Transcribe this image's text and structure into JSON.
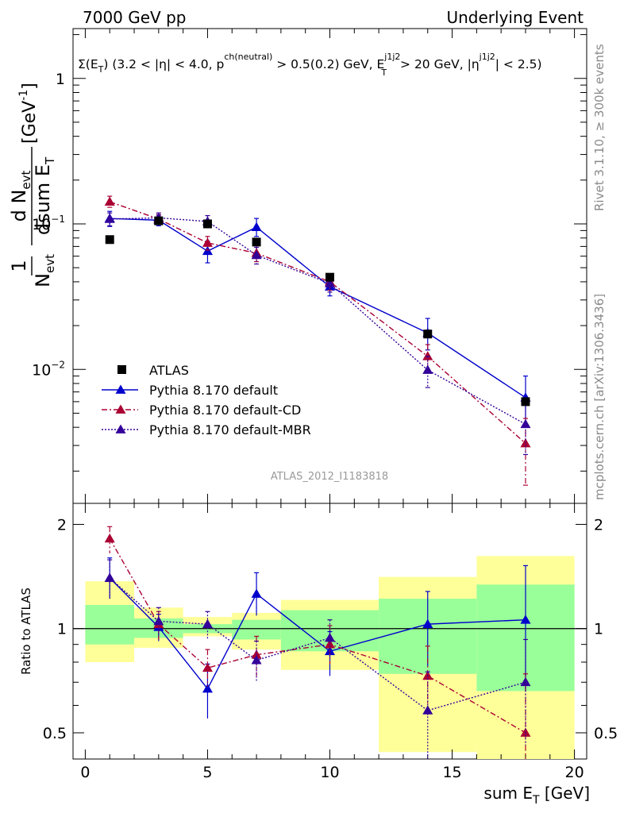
{
  "header": {
    "left": "7000 GeV pp",
    "right": "Underlying Event"
  },
  "side_labels": {
    "rivet": "Rivet 3.1.10, ≥ 300k events",
    "mcplots": "mcplots.cern.ch [arXiv:1306.3436]"
  },
  "watermark": "ATLAS_2012_I1183818",
  "chart_data": {
    "type": "scatter",
    "title": "Σ(E_T) (3.2 < |η| < 4.0, p^ch(neutral) > 0.5(0.2) GeV, E_T^j1j2 > 20 GeV, |η^j1j2| < 2.5)",
    "title_parts": {
      "sigma": "Σ(E",
      "t_sub": "T",
      "a": ") (3.2 < |η| < 4.0, p",
      "ch_sup": "ch(neutral)",
      "b": " > 0.5(0.2) GeV, E",
      "j_sup": "j1j2",
      "t_sub2": "T",
      "c": " > 20 GeV, |η",
      "j_sup2": "j1j2",
      "d": "| < 2.5)"
    },
    "xlabel": "sum E_T [GeV]",
    "xlabel_parts": {
      "main": "sum E",
      "sub": "T",
      "unit": " [GeV]"
    },
    "ylabel": "1/N_evt dN_evt/dsum E_T [GeV^-1]",
    "ylabel_parts": {
      "one": "1",
      "nevt": "N",
      "evt": "evt",
      "dn": "d N",
      "dsum": "dsum E",
      "t": "T",
      "unit": " [GeV",
      "exp": "-1",
      "close": "]"
    },
    "ratio_ylabel": "Ratio to ATLAS",
    "xlim": [
      -0.5,
      20.5
    ],
    "ylim": [
      0.0012,
      2.2
    ],
    "yscale": "log",
    "ratio_ylim": [
      0.42,
      2.3
    ],
    "x_ticks": [
      0,
      5,
      10,
      15,
      20
    ],
    "x_tick_labels": [
      "0",
      "5",
      "10",
      "15",
      "20"
    ],
    "y_tick_labels": [
      {
        "v": 1,
        "base": "1",
        "exp": ""
      },
      {
        "v": 0.1,
        "base": "10",
        "exp": "−1"
      },
      {
        "v": 0.01,
        "base": "10",
        "exp": "−2"
      }
    ],
    "ratio_tick_labels": [
      {
        "v": 0.5,
        "text": "0.5"
      },
      {
        "v": 1,
        "text": "1"
      },
      {
        "v": 2,
        "text": "2"
      }
    ],
    "bins": [
      [
        0,
        2
      ],
      [
        2,
        4
      ],
      [
        4,
        6
      ],
      [
        6,
        8
      ],
      [
        8,
        12
      ],
      [
        12,
        16
      ],
      [
        16,
        20
      ]
    ],
    "x": [
      1,
      3,
      5,
      7,
      10,
      14,
      18
    ],
    "data": {
      "name": "ATLAS",
      "values": [
        0.078,
        0.105,
        0.1,
        0.075,
        0.043,
        0.0175,
        0.006
      ],
      "band_green": [
        [
          0.9,
          1.17
        ],
        [
          0.94,
          1.07
        ],
        [
          0.97,
          1.03
        ],
        [
          0.93,
          1.06
        ],
        [
          0.86,
          1.13
        ],
        [
          0.74,
          1.22
        ],
        [
          0.66,
          1.34
        ]
      ],
      "band_yellow": [
        [
          0.8,
          1.37
        ],
        [
          0.88,
          1.15
        ],
        [
          0.95,
          1.08
        ],
        [
          0.87,
          1.11
        ],
        [
          0.76,
          1.21
        ],
        [
          0.44,
          1.41
        ],
        [
          0.35,
          1.62
        ]
      ]
    },
    "series": [
      {
        "name": "Pythia 8.170 default",
        "color": "#0000cc",
        "dash": "",
        "values": [
          0.109,
          0.106,
          0.065,
          0.095,
          0.037,
          0.0178,
          0.0064
        ],
        "err_lo": [
          0.096,
          0.097,
          0.054,
          0.082,
          0.032,
          0.0136,
          0.004
        ],
        "err_hi": [
          0.122,
          0.115,
          0.076,
          0.109,
          0.042,
          0.0224,
          0.009
        ],
        "ratio": [
          1.4,
          1.01,
          0.67,
          1.26,
          0.86,
          1.03,
          1.06
        ],
        "ratio_lo": [
          1.22,
          0.92,
          0.55,
          1.09,
          0.73,
          0.78,
          0.66
        ],
        "ratio_hi": [
          1.6,
          1.1,
          0.79,
          1.45,
          0.98,
          1.28,
          1.52
        ]
      },
      {
        "name": "Pythia 8.170 default-CD",
        "color": "#aa0033",
        "dash": "7,3,2,3",
        "values": [
          0.142,
          0.108,
          0.074,
          0.063,
          0.04,
          0.0123,
          0.0031
        ],
        "err_lo": [
          0.13,
          0.1,
          0.066,
          0.055,
          0.035,
          0.0098,
          0.0016
        ],
        "err_hi": [
          0.155,
          0.116,
          0.082,
          0.071,
          0.045,
          0.0148,
          0.0046
        ],
        "ratio": [
          1.82,
          1.03,
          0.77,
          0.84,
          0.9,
          0.73,
          0.5
        ],
        "ratio_lo": [
          1.65,
          0.93,
          0.68,
          0.73,
          0.79,
          0.56,
          0.27
        ],
        "ratio_hi": [
          1.97,
          1.12,
          0.87,
          0.95,
          1.02,
          0.89,
          0.74
        ]
      },
      {
        "name": "Pythia 8.170 default-MBR",
        "color": "#330099",
        "dash": "2,2",
        "values": [
          0.108,
          0.11,
          0.104,
          0.061,
          0.039,
          0.0099,
          0.0042
        ],
        "err_lo": [
          0.097,
          0.101,
          0.094,
          0.053,
          0.034,
          0.0075,
          0.0026
        ],
        "err_hi": [
          0.119,
          0.119,
          0.114,
          0.069,
          0.044,
          0.0123,
          0.0058
        ],
        "ratio": [
          1.4,
          1.05,
          1.03,
          0.81,
          0.94,
          0.58,
          0.7
        ],
        "ratio_lo": [
          1.22,
          0.95,
          0.93,
          0.7,
          0.82,
          0.41,
          0.46
        ],
        "ratio_hi": [
          1.58,
          1.15,
          1.12,
          0.92,
          1.06,
          0.75,
          0.93
        ]
      }
    ],
    "legend_placement": "lower-left",
    "grid": false
  }
}
